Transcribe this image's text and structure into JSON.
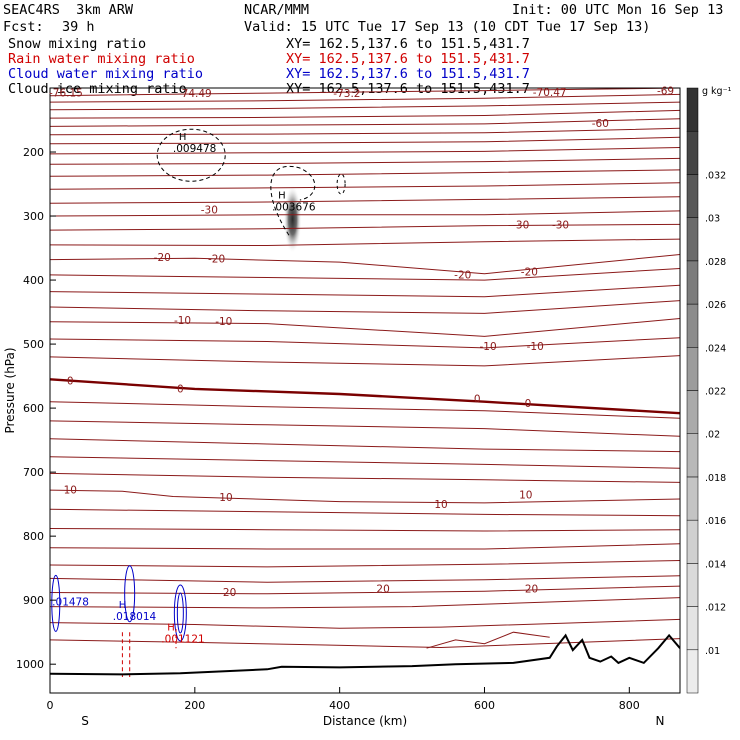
{
  "header": {
    "model": "SEAC4RS  3km ARW",
    "center": "NCAR/MMM",
    "init": "Init: 00 UTC Mon 16 Sep 13",
    "fcst_label": "Fcst:",
    "fcst_value": "39 h",
    "valid": "Valid: 15 UTC Tue 17 Sep 13 (10 CDT Tue 17 Sep 13)"
  },
  "fields": [
    {
      "name": "Snow mixing ratio",
      "xy": "XY= 162.5,137.6 to 151.5,431.7",
      "color": "#000000"
    },
    {
      "name": "Rain water mixing ratio",
      "xy": "XY= 162.5,137.6 to 151.5,431.7",
      "color": "#d00000"
    },
    {
      "name": "Cloud water mixing ratio",
      "xy": "XY= 162.5,137.6 to 151.5,431.7",
      "color": "#0000c8"
    },
    {
      "name": "Cloud ice mixing ratio",
      "xy": "XY= 162.5,137.6 to 151.5,431.7",
      "color": "#000000"
    }
  ],
  "chart_data": {
    "type": "contour",
    "xlabel": "Distance (km)",
    "ylabel": "Pressure (hPa)",
    "xlim": [
      0,
      870
    ],
    "ylim": [
      1045,
      100
    ],
    "x_ticks": [
      0,
      200,
      400,
      600,
      800
    ],
    "y_ticks": [
      200,
      300,
      400,
      500,
      600,
      700,
      800,
      900,
      1000
    ],
    "left_end_label": "S",
    "right_end_label": "N",
    "colorbar": {
      "unit": "g kg⁻¹",
      "ticks": [
        ".01",
        ".012",
        ".014",
        ".016",
        ".018",
        ".02",
        ".022",
        ".024",
        ".026",
        ".028",
        ".03",
        ".032"
      ],
      "shades": [
        "#ececec",
        "#e4e4e4",
        "#dadada",
        "#d0d0d0",
        "#c4c4c4",
        "#b8b8b8",
        "#aaaaaa",
        "#9c9c9c",
        "#8c8c8c",
        "#7c7c7c",
        "#6a6a6a",
        "#585858",
        "#454545",
        "#333333"
      ]
    },
    "temperature_labels": [
      {
        "text": "-76.15",
        "x": 22,
        "p": 107
      },
      {
        "text": "-74.49",
        "x": 200,
        "p": 108
      },
      {
        "text": "-73.2",
        "x": 410,
        "p": 108
      },
      {
        "text": "-70.47",
        "x": 690,
        "p": 106
      },
      {
        "text": "-69",
        "x": 850,
        "p": 104
      },
      {
        "text": "-60",
        "x": 760,
        "p": 155
      },
      {
        "text": "-30",
        "x": 220,
        "p": 290
      },
      {
        "text": "-30",
        "x": 650,
        "p": 313
      },
      {
        "text": "-30",
        "x": 705,
        "p": 313
      },
      {
        "text": "-20",
        "x": 155,
        "p": 364
      },
      {
        "text": "-20",
        "x": 230,
        "p": 366
      },
      {
        "text": "-20",
        "x": 570,
        "p": 391
      },
      {
        "text": "-20",
        "x": 662,
        "p": 387
      },
      {
        "text": "-10",
        "x": 183,
        "p": 462
      },
      {
        "text": "-10",
        "x": 240,
        "p": 464
      },
      {
        "text": "-10",
        "x": 605,
        "p": 503
      },
      {
        "text": "-10",
        "x": 670,
        "p": 503
      },
      {
        "text": "0",
        "x": 28,
        "p": 557
      },
      {
        "text": "0",
        "x": 180,
        "p": 569
      },
      {
        "text": "0",
        "x": 590,
        "p": 585
      },
      {
        "text": "0",
        "x": 660,
        "p": 592
      },
      {
        "text": "10",
        "x": 28,
        "p": 727
      },
      {
        "text": "10",
        "x": 243,
        "p": 739
      },
      {
        "text": "10",
        "x": 540,
        "p": 750
      },
      {
        "text": "10",
        "x": 657,
        "p": 735
      },
      {
        "text": "20",
        "x": 248,
        "p": 887
      },
      {
        "text": "20",
        "x": 460,
        "p": 882
      },
      {
        "text": "20",
        "x": 665,
        "p": 882
      }
    ],
    "annotations": [
      {
        "marker": "H",
        "value": ".009478",
        "x": 178,
        "p": 194,
        "color": "#000000"
      },
      {
        "marker": "H",
        "value": ".003676",
        "x": 315,
        "p": 285,
        "color": "#000000"
      },
      {
        "marker": "",
        "value": ".01478",
        "x": 3,
        "p": 902,
        "color": "#0000c8"
      },
      {
        "marker": "H",
        "value": ".018014",
        "x": 95,
        "p": 925,
        "color": "#0000c8"
      },
      {
        "marker": "H",
        "value": ".001121",
        "x": 162,
        "p": 960,
        "color": "#d00000"
      }
    ]
  }
}
